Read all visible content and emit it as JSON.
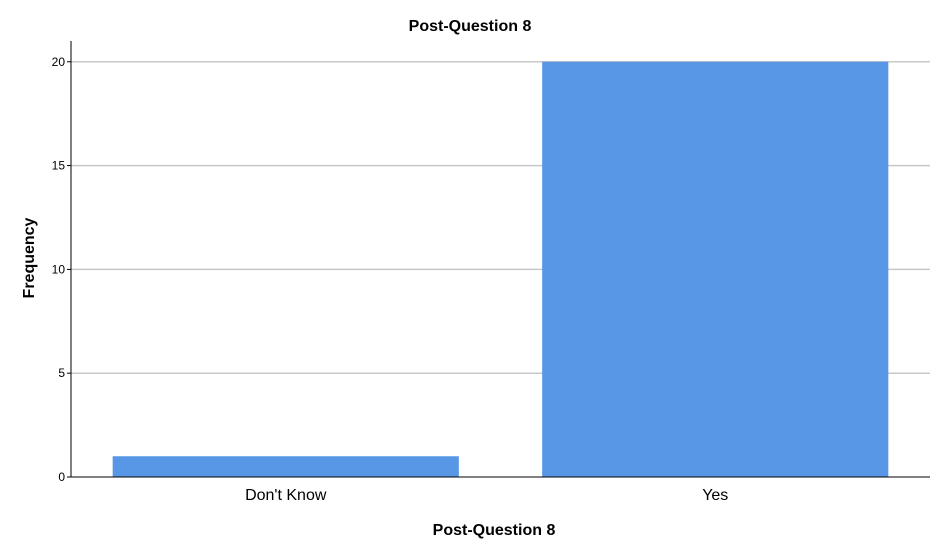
{
  "chart_data": {
    "type": "bar",
    "title": "Post-Question 8",
    "xlabel": "Post-Question 8",
    "ylabel": "Frequency",
    "categories": [
      "Don't Know",
      "Yes"
    ],
    "values": [
      1,
      20
    ],
    "ylim": [
      0,
      21
    ],
    "yticks": [
      "0",
      "5",
      "10",
      "15",
      "20"
    ],
    "grid": true,
    "bar_color": "#5897e5"
  }
}
